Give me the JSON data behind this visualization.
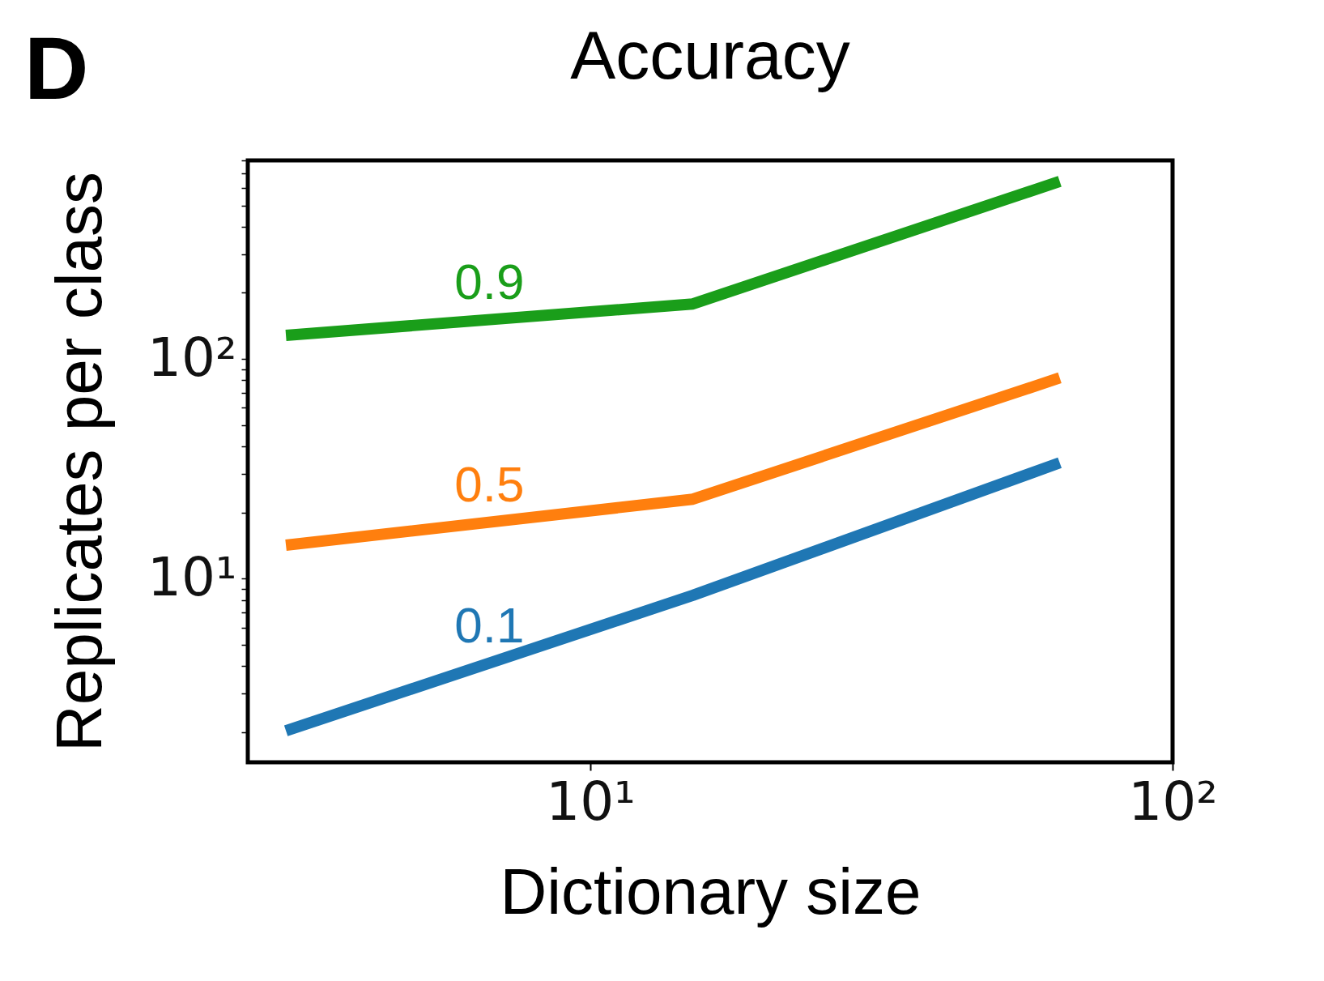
{
  "chart_data": {
    "type": "line",
    "title": "Accuracy",
    "xlabel": "Dictionary size",
    "ylabel": "Replicates per class",
    "annotations": [
      "D"
    ],
    "log": "xy",
    "grid": false,
    "legend": false,
    "marker": "none",
    "line_style": "solid",
    "x": [
      3,
      15,
      64
    ],
    "xlim": [
      2.58,
      100
    ],
    "xticks": [
      {
        "value": 10,
        "label": "10¹"
      },
      {
        "value": 100,
        "label": "10²"
      }
    ],
    "ylim": [
      1.46,
      801
    ],
    "yticks": [
      {
        "value": 2,
        "label": null
      },
      {
        "value": 3,
        "label": null
      },
      {
        "value": 4,
        "label": null
      },
      {
        "value": 5,
        "label": null
      },
      {
        "value": 6,
        "label": null
      },
      {
        "value": 7,
        "label": null
      },
      {
        "value": 8,
        "label": null
      },
      {
        "value": 9,
        "label": null
      },
      {
        "value": 10,
        "label": "10¹"
      },
      {
        "value": 20,
        "label": null
      },
      {
        "value": 30,
        "label": null
      },
      {
        "value": 40,
        "label": null
      },
      {
        "value": 50,
        "label": null
      },
      {
        "value": 60,
        "label": null
      },
      {
        "value": 70,
        "label": null
      },
      {
        "value": 80,
        "label": null
      },
      {
        "value": 90,
        "label": null
      },
      {
        "value": 100,
        "label": "10²"
      },
      {
        "value": 200,
        "label": null
      },
      {
        "value": 300,
        "label": null
      },
      {
        "value": 400,
        "label": null
      },
      {
        "value": 500,
        "label": null
      },
      {
        "value": 600,
        "label": null
      },
      {
        "value": 700,
        "label": null
      },
      {
        "value": 800,
        "label": null
      }
    ],
    "series": [
      {
        "name": "0.9",
        "color": "#1a9e1a",
        "values": [
          128,
          178,
          643
        ]
      },
      {
        "name": "0.5",
        "color": "#ff7f0e",
        "values": [
          14.2,
          23,
          82
        ]
      },
      {
        "name": "0.1",
        "color": "#1f77b4",
        "values": [
          2.03,
          8.4,
          33.7
        ]
      }
    ]
  }
}
